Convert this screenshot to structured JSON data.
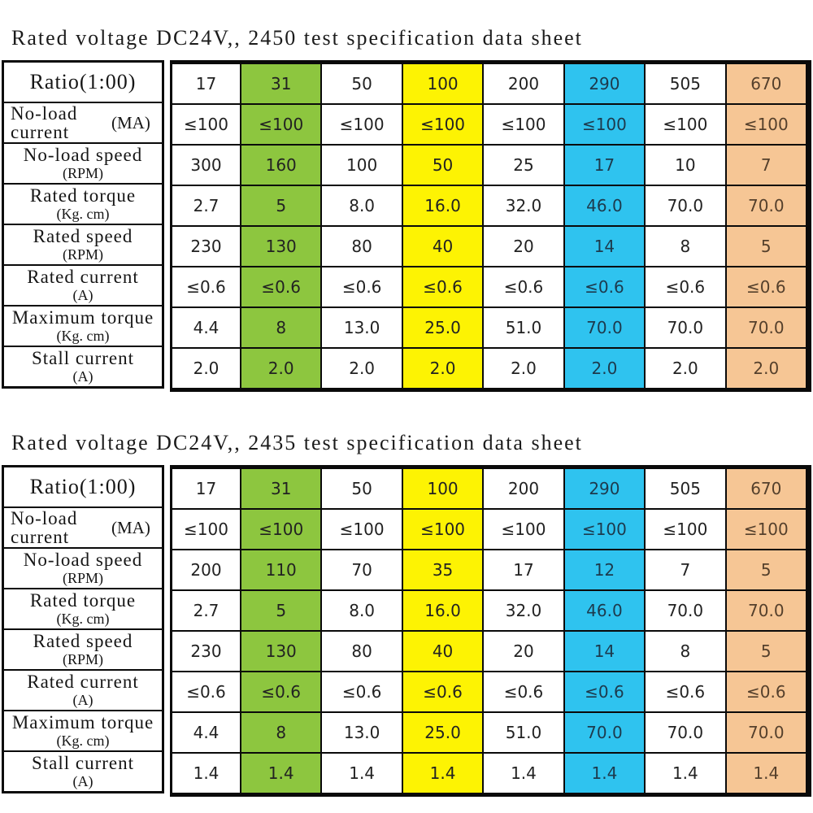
{
  "colors": {
    "green": "#8dc63f",
    "yellow": "#fdf303",
    "cyan": "#2fc3ef",
    "peach": "#f6c695",
    "border": "#0a0a0a",
    "background": "#ffffff"
  },
  "tables": [
    {
      "title": "Rated voltage DC24V,, 2450 test specification data sheet",
      "rows": [
        {
          "label": "Ratio(1:00)",
          "unit": "",
          "values": [
            "17",
            "31",
            "50",
            "100",
            "200",
            "290",
            "505",
            "670"
          ]
        },
        {
          "label": "No-load current",
          "unit": "(MA)",
          "values": [
            "≤100",
            "≤100",
            "≤100",
            "≤100",
            "≤100",
            "≤100",
            "≤100",
            "≤100"
          ]
        },
        {
          "label": "No-load speed",
          "unit": "(RPM)",
          "values": [
            "300",
            "160",
            "100",
            "50",
            "25",
            "17",
            "10",
            "7"
          ]
        },
        {
          "label": "Rated torque",
          "unit": "(Kg. cm)",
          "values": [
            "2.7",
            "5",
            "8.0",
            "16.0",
            "32.0",
            "46.0",
            "70.0",
            "70.0"
          ]
        },
        {
          "label": "Rated speed",
          "unit": "(RPM)",
          "values": [
            "230",
            "130",
            "80",
            "40",
            "20",
            "14",
            "8",
            "5"
          ]
        },
        {
          "label": "Rated current",
          "unit": "(A)",
          "values": [
            "≤0.6",
            "≤0.6",
            "≤0.6",
            "≤0.6",
            "≤0.6",
            "≤0.6",
            "≤0.6",
            "≤0.6"
          ]
        },
        {
          "label": "Maximum torque",
          "unit": "(Kg. cm)",
          "values": [
            "4.4",
            "8",
            "13.0",
            "25.0",
            "51.0",
            "70.0",
            "70.0",
            "70.0"
          ]
        },
        {
          "label": "Stall current",
          "unit": "(A)",
          "values": [
            "2.0",
            "2.0",
            "2.0",
            "2.0",
            "2.0",
            "2.0",
            "2.0",
            "2.0"
          ]
        }
      ]
    },
    {
      "title": "Rated voltage DC24V,, 2435 test specification data sheet",
      "rows": [
        {
          "label": "Ratio(1:00)",
          "unit": "",
          "values": [
            "17",
            "31",
            "50",
            "100",
            "200",
            "290",
            "505",
            "670"
          ]
        },
        {
          "label": "No-load current",
          "unit": "(MA)",
          "values": [
            "≤100",
            "≤100",
            "≤100",
            "≤100",
            "≤100",
            "≤100",
            "≤100",
            "≤100"
          ]
        },
        {
          "label": "No-load speed",
          "unit": "(RPM)",
          "values": [
            "200",
            "110",
            "70",
            "35",
            "17",
            "12",
            "7",
            "5"
          ]
        },
        {
          "label": "Rated torque",
          "unit": "(Kg. cm)",
          "values": [
            "2.7",
            "5",
            "8.0",
            "16.0",
            "32.0",
            "46.0",
            "70.0",
            "70.0"
          ]
        },
        {
          "label": "Rated speed",
          "unit": "(RPM)",
          "values": [
            "230",
            "130",
            "80",
            "40",
            "20",
            "14",
            "8",
            "5"
          ]
        },
        {
          "label": "Rated current",
          "unit": "(A)",
          "values": [
            "≤0.6",
            "≤0.6",
            "≤0.6",
            "≤0.6",
            "≤0.6",
            "≤0.6",
            "≤0.6",
            "≤0.6"
          ]
        },
        {
          "label": "Maximum torque",
          "unit": "(Kg. cm)",
          "values": [
            "4.4",
            "8",
            "13.0",
            "25.0",
            "51.0",
            "70.0",
            "70.0",
            "70.0"
          ]
        },
        {
          "label": "Stall current",
          "unit": "(A)",
          "values": [
            "1.4",
            "1.4",
            "1.4",
            "1.4",
            "1.4",
            "1.4",
            "1.4",
            "1.4"
          ]
        }
      ]
    }
  ]
}
